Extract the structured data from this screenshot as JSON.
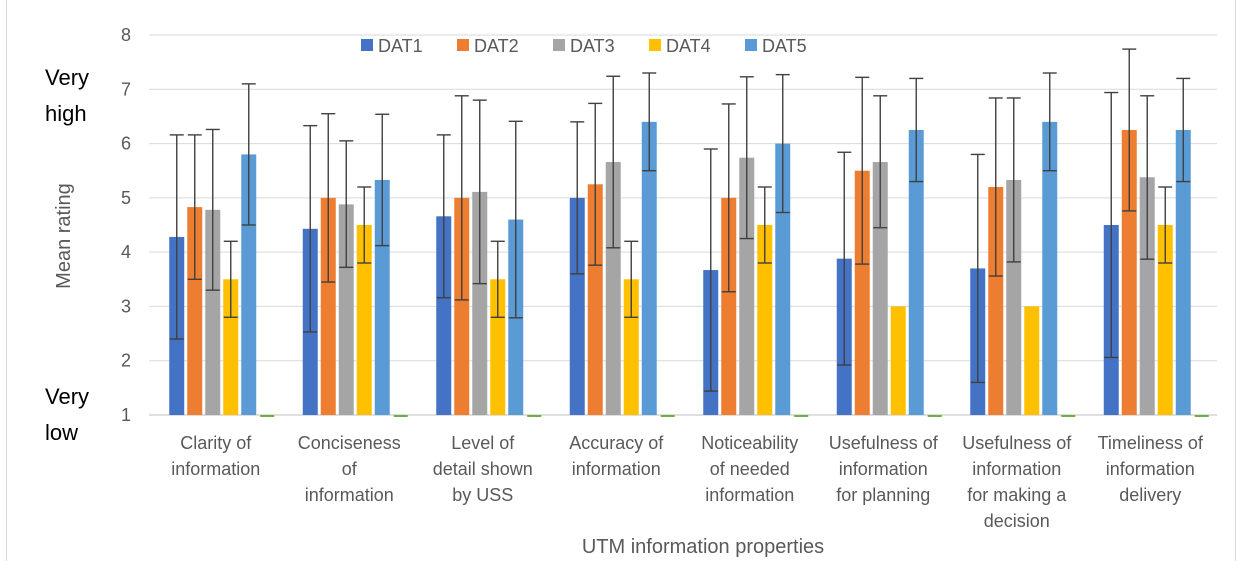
{
  "chart_data": {
    "type": "bar",
    "title": "",
    "xlabel": "UTM information properties",
    "ylabel": "Mean rating",
    "ylim": [
      1,
      8
    ],
    "yticks": [
      1,
      2,
      3,
      4,
      5,
      6,
      7,
      8
    ],
    "grid": true,
    "legend_position": "top",
    "scale_annotations": {
      "high": [
        "Very",
        "high"
      ],
      "low": [
        "Very",
        "low"
      ]
    },
    "categories": [
      [
        "Clarity of",
        "information"
      ],
      [
        "Conciseness",
        "of",
        "information"
      ],
      [
        "Level of",
        "detail shown",
        "by USS"
      ],
      [
        "Accuracy of",
        "information"
      ],
      [
        "Noticeability",
        "of needed",
        "information"
      ],
      [
        "Usefulness of",
        "information",
        "for planning"
      ],
      [
        "Usefulness of",
        "information",
        "for making a",
        "decision"
      ],
      [
        "Timeliness of",
        "information",
        "delivery"
      ]
    ],
    "series": [
      {
        "name": "DAT1",
        "color": "#4472c4",
        "values": [
          4.28,
          4.43,
          4.66,
          5.0,
          3.67,
          3.88,
          3.7,
          4.5
        ],
        "error_low": [
          2.4,
          2.53,
          3.16,
          3.6,
          1.44,
          1.92,
          1.6,
          2.06
        ],
        "error_high": [
          6.16,
          6.33,
          6.16,
          6.4,
          5.9,
          5.84,
          5.8,
          6.94
        ]
      },
      {
        "name": "DAT2",
        "color": "#ed7d31",
        "values": [
          4.83,
          5.0,
          5.0,
          5.25,
          5.0,
          5.5,
          5.2,
          6.25
        ],
        "error_low": [
          3.5,
          3.45,
          3.12,
          3.76,
          3.27,
          3.78,
          3.56,
          4.76
        ],
        "error_high": [
          6.16,
          6.55,
          6.88,
          6.74,
          6.73,
          7.22,
          6.84,
          7.74
        ]
      },
      {
        "name": "DAT3",
        "color": "#a5a5a5",
        "values": [
          4.78,
          4.88,
          5.11,
          5.66,
          5.74,
          5.66,
          5.33,
          5.38
        ],
        "error_low": [
          3.3,
          3.72,
          3.42,
          4.08,
          4.25,
          4.45,
          3.82,
          3.87
        ],
        "error_high": [
          6.26,
          6.05,
          6.8,
          7.24,
          7.23,
          6.88,
          6.84,
          6.88
        ]
      },
      {
        "name": "DAT4",
        "color": "#ffc000",
        "values": [
          3.5,
          4.5,
          3.5,
          3.5,
          4.5,
          3.0,
          3.0,
          4.5
        ],
        "error_low": [
          2.8,
          3.8,
          2.8,
          2.8,
          3.8,
          null,
          null,
          3.8
        ],
        "error_high": [
          4.2,
          5.2,
          4.2,
          4.2,
          5.2,
          null,
          null,
          5.2
        ]
      },
      {
        "name": "DAT5",
        "color": "#5b9bd5",
        "values": [
          5.8,
          5.33,
          4.6,
          6.4,
          6.0,
          6.25,
          6.4,
          6.25
        ],
        "error_low": [
          4.5,
          4.12,
          2.79,
          5.5,
          4.73,
          5.3,
          5.5,
          5.3
        ],
        "error_high": [
          7.1,
          6.54,
          6.41,
          7.3,
          7.27,
          7.2,
          7.3,
          7.2
        ]
      }
    ]
  }
}
